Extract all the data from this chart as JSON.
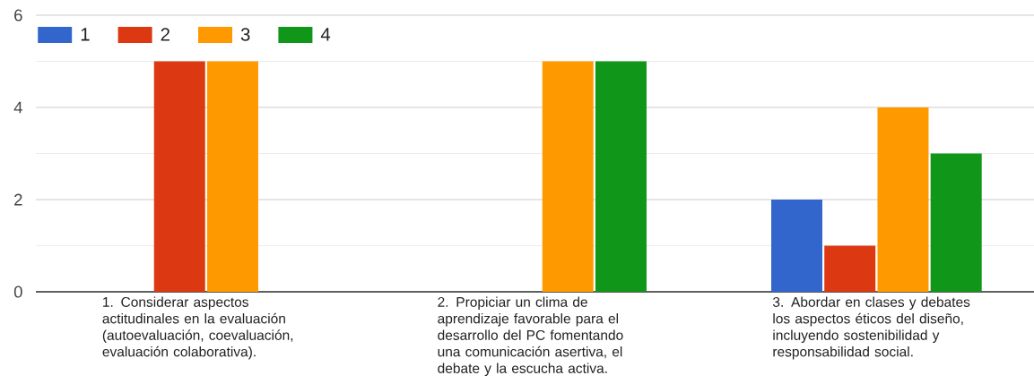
{
  "chart_data": {
    "type": "bar",
    "categories": [
      "1. Considerar aspectos actitudinales en la evaluación (autoevaluación, coevaluación, evaluación colaborativa).",
      "2. Propiciar un clima de aprendizaje favorable para el desarrollo del PC fomentando una comunicación asertiva, el debate y la escucha activa.",
      "3. Abordar en clases y debates los aspectos éticos del diseño, incluyendo sostenibilidad y responsabilidad social."
    ],
    "series": [
      {
        "name": "1",
        "color": "#3366cc",
        "values": [
          0,
          0,
          2
        ]
      },
      {
        "name": "2",
        "color": "#dc3912",
        "values": [
          5,
          0,
          1
        ]
      },
      {
        "name": "3",
        "color": "#ff9900",
        "values": [
          5,
          5,
          4
        ]
      },
      {
        "name": "4",
        "color": "#109618",
        "values": [
          0,
          5,
          3
        ]
      }
    ],
    "ylim": [
      0,
      6
    ],
    "yticks": [
      0,
      {
        "value": 1,
        "label": null
      },
      2,
      {
        "value": 3,
        "label": null
      },
      4,
      {
        "value": 5,
        "label": null
      },
      6
    ],
    "grid": "y",
    "legend": "top left"
  }
}
